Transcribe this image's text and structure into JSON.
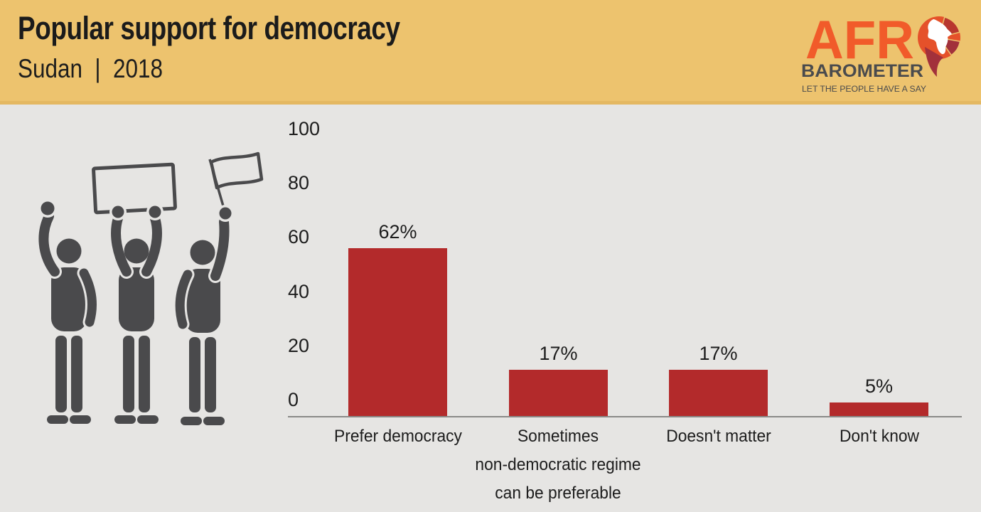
{
  "header": {
    "title": "Popular support for democracy",
    "subtitle": "Sudan  |  2018",
    "logo": {
      "word_top": "AFR",
      "word_bottom": "BAROMETER",
      "tagline": "LET THE PEOPLE HAVE A SAY",
      "orange": "#f15b2a",
      "charcoal": "#4a4b4d",
      "crimson": "#a2313b"
    }
  },
  "chart_data": {
    "type": "bar",
    "title": "Popular support for democracy",
    "subtitle": "Sudan | 2018",
    "categories": [
      "Prefer democracy",
      "Sometimes non-democratic regime can be preferable",
      "Doesn't matter",
      "Don't know"
    ],
    "categories_display": [
      "Prefer democracy",
      "Sometimes\nnon-democratic regime\ncan be preferable",
      "Doesn't matter",
      "Don't know"
    ],
    "values": [
      62,
      17,
      17,
      5
    ],
    "value_labels": [
      "62%",
      "17%",
      "17%",
      "5%"
    ],
    "yticks": [
      "100",
      "80",
      "60",
      "40",
      "20",
      "0"
    ],
    "ylim": [
      0,
      100
    ],
    "xlabel": "",
    "ylabel": "",
    "grid": false,
    "legend_position": "none",
    "bar_color": "#b32a2b",
    "background_color": "#e6e5e3",
    "header_color": "#edc36e"
  },
  "illustration": {
    "name": "three-protesters-with-sign-and-flag",
    "color": "#4a4a4c"
  }
}
